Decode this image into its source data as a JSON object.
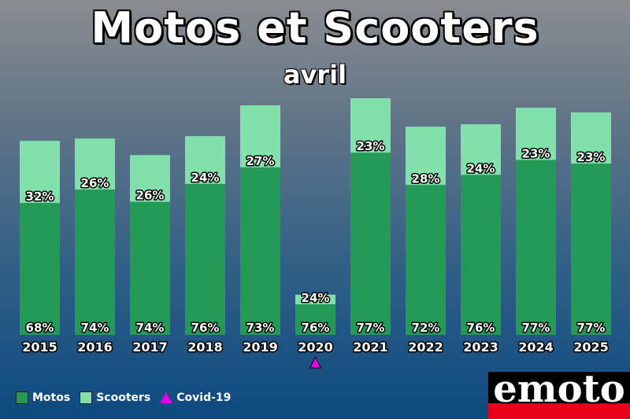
{
  "chart_data": {
    "type": "bar",
    "stacked": true,
    "title": "Motos et Scooters",
    "subtitle": "avril",
    "categories": [
      "2015",
      "2016",
      "2017",
      "2018",
      "2019",
      "2020",
      "2021",
      "2022",
      "2023",
      "2024",
      "2025"
    ],
    "totals_relative": [
      0.82,
      0.83,
      0.76,
      0.84,
      0.97,
      0.17,
      1.0,
      0.88,
      0.89,
      0.96,
      0.94
    ],
    "series": [
      {
        "name": "Motos",
        "color": "#239b56",
        "percent": [
          68,
          74,
          74,
          76,
          73,
          76,
          77,
          72,
          76,
          77,
          77
        ]
      },
      {
        "name": "Scooters",
        "color": "#82e0aa",
        "percent": [
          32,
          26,
          26,
          24,
          27,
          24,
          23,
          28,
          24,
          23,
          23
        ]
      }
    ],
    "annotations": [
      {
        "category": "2020",
        "marker": "triangle",
        "color": "#e600e6",
        "label": "Covid-19"
      }
    ],
    "legend": [
      {
        "label": "Motos",
        "color": "#239b56"
      },
      {
        "label": "Scooters",
        "color": "#82e0aa"
      },
      {
        "label": "Covid-19",
        "color": "#e600e6"
      }
    ],
    "legend_position": "bottom-left"
  },
  "logo_text": "emoto"
}
